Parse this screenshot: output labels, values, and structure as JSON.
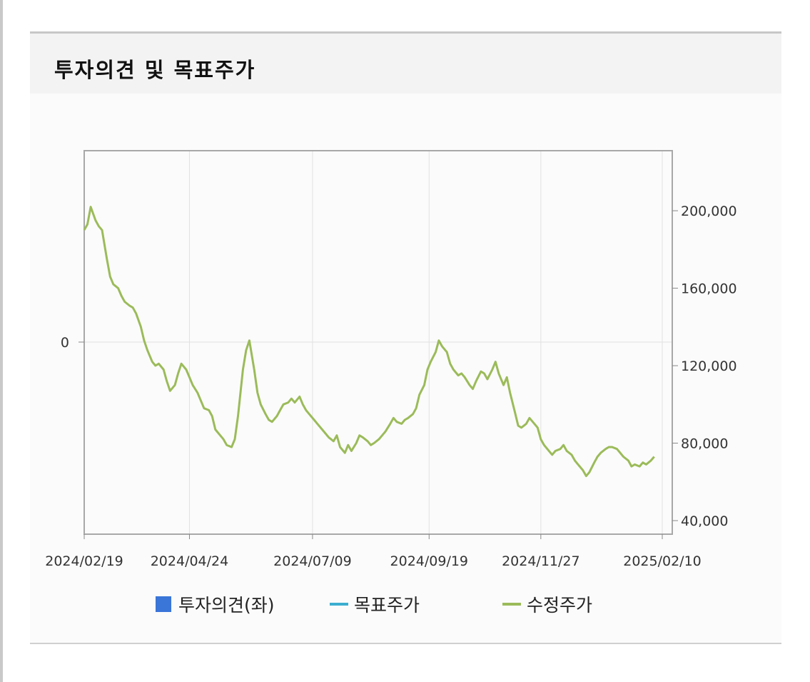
{
  "title": "투자의견 및 목표주가",
  "colors": {
    "price_line": "#9bbb59",
    "opinion": "#3a75d8",
    "target": "#3aaed0",
    "frame": "#a8a8a8",
    "grid": "#e1e1e1"
  },
  "legend": [
    {
      "label": "투자의견(좌)",
      "color": "#3a75d8",
      "shape": "square"
    },
    {
      "label": "목표주가",
      "color": "#3aaed0",
      "shape": "line"
    },
    {
      "label": "수정주가",
      "color": "#9bbb59",
      "shape": "line"
    }
  ],
  "chart_data": {
    "type": "line",
    "title": "",
    "x_ticks": [
      "2024/02/19",
      "2024/04/24",
      "2024/07/09",
      "2024/09/19",
      "2024/11/27",
      "2025/02/10"
    ],
    "y_left": {
      "ticks": [
        "0"
      ]
    },
    "y_right": {
      "ticks": [
        "40,000",
        "80,000",
        "120,000",
        "160,000",
        "200,000"
      ],
      "ylim": [
        33000,
        231000
      ]
    },
    "grid": true,
    "legend_position": "bottom",
    "series": [
      {
        "name": "수정주가",
        "color": "#9bbb59",
        "points": [
          [
            "2024/02/19",
            190000
          ],
          [
            "2024/02/21",
            193000
          ],
          [
            "2024/02/23",
            202000
          ],
          [
            "2024/02/26",
            195000
          ],
          [
            "2024/02/28",
            192000
          ],
          [
            "2024/03/01",
            190000
          ],
          [
            "2024/03/04",
            175000
          ],
          [
            "2024/03/06",
            166000
          ],
          [
            "2024/03/08",
            162000
          ],
          [
            "2024/03/11",
            160000
          ],
          [
            "2024/03/13",
            156000
          ],
          [
            "2024/03/15",
            153000
          ],
          [
            "2024/03/18",
            151000
          ],
          [
            "2024/03/20",
            150000
          ],
          [
            "2024/03/22",
            147000
          ],
          [
            "2024/03/25",
            140000
          ],
          [
            "2024/03/27",
            133000
          ],
          [
            "2024/03/29",
            128000
          ],
          [
            "2024/04/01",
            122000
          ],
          [
            "2024/04/03",
            120000
          ],
          [
            "2024/04/05",
            121000
          ],
          [
            "2024/04/08",
            118000
          ],
          [
            "2024/04/10",
            112000
          ],
          [
            "2024/04/12",
            107000
          ],
          [
            "2024/04/15",
            110000
          ],
          [
            "2024/04/17",
            116000
          ],
          [
            "2024/04/19",
            121000
          ],
          [
            "2024/04/22",
            118000
          ],
          [
            "2024/04/24",
            114000
          ],
          [
            "2024/04/26",
            110000
          ],
          [
            "2024/04/29",
            106000
          ],
          [
            "2024/05/01",
            102000
          ],
          [
            "2024/05/03",
            98000
          ],
          [
            "2024/05/06",
            97000
          ],
          [
            "2024/05/08",
            94000
          ],
          [
            "2024/05/10",
            87000
          ],
          [
            "2024/05/13",
            84000
          ],
          [
            "2024/05/15",
            82000
          ],
          [
            "2024/05/17",
            79000
          ],
          [
            "2024/05/20",
            78000
          ],
          [
            "2024/05/22",
            82000
          ],
          [
            "2024/05/24",
            94000
          ],
          [
            "2024/05/27",
            118000
          ],
          [
            "2024/05/29",
            128000
          ],
          [
            "2024/05/31",
            133000
          ],
          [
            "2024/06/03",
            118000
          ],
          [
            "2024/06/05",
            106000
          ],
          [
            "2024/06/07",
            100000
          ],
          [
            "2024/06/10",
            95000
          ],
          [
            "2024/06/12",
            92000
          ],
          [
            "2024/06/14",
            91000
          ],
          [
            "2024/06/17",
            94000
          ],
          [
            "2024/06/19",
            97000
          ],
          [
            "2024/06/21",
            100000
          ],
          [
            "2024/06/24",
            101000
          ],
          [
            "2024/06/26",
            103000
          ],
          [
            "2024/06/28",
            101000
          ],
          [
            "2024/07/01",
            104000
          ],
          [
            "2024/07/03",
            100000
          ],
          [
            "2024/07/05",
            97000
          ],
          [
            "2024/07/08",
            94000
          ],
          [
            "2024/07/10",
            92000
          ],
          [
            "2024/07/12",
            90000
          ],
          [
            "2024/07/15",
            87000
          ],
          [
            "2024/07/17",
            85000
          ],
          [
            "2024/07/19",
            83000
          ],
          [
            "2024/07/22",
            81000
          ],
          [
            "2024/07/24",
            84000
          ],
          [
            "2024/07/26",
            78000
          ],
          [
            "2024/07/29",
            75000
          ],
          [
            "2024/07/31",
            79000
          ],
          [
            "2024/08/02",
            76000
          ],
          [
            "2024/08/05",
            80000
          ],
          [
            "2024/08/07",
            84000
          ],
          [
            "2024/08/09",
            83000
          ],
          [
            "2024/08/12",
            81000
          ],
          [
            "2024/08/14",
            79000
          ],
          [
            "2024/08/16",
            80000
          ],
          [
            "2024/08/19",
            82000
          ],
          [
            "2024/08/21",
            84000
          ],
          [
            "2024/08/23",
            86000
          ],
          [
            "2024/08/26",
            90000
          ],
          [
            "2024/08/28",
            93000
          ],
          [
            "2024/08/30",
            91000
          ],
          [
            "2024/09/02",
            90000
          ],
          [
            "2024/09/04",
            92000
          ],
          [
            "2024/09/06",
            93000
          ],
          [
            "2024/09/09",
            95000
          ],
          [
            "2024/09/11",
            98000
          ],
          [
            "2024/09/13",
            105000
          ],
          [
            "2024/09/16",
            110000
          ],
          [
            "2024/09/18",
            118000
          ],
          [
            "2024/09/20",
            122000
          ],
          [
            "2024/09/23",
            127000
          ],
          [
            "2024/09/25",
            133000
          ],
          [
            "2024/09/27",
            130000
          ],
          [
            "2024/09/30",
            127000
          ],
          [
            "2024/10/02",
            121000
          ],
          [
            "2024/10/04",
            118000
          ],
          [
            "2024/10/07",
            115000
          ],
          [
            "2024/10/09",
            116000
          ],
          [
            "2024/10/11",
            114000
          ],
          [
            "2024/10/14",
            110000
          ],
          [
            "2024/10/16",
            108000
          ],
          [
            "2024/10/18",
            112000
          ],
          [
            "2024/10/21",
            117000
          ],
          [
            "2024/10/23",
            116000
          ],
          [
            "2024/10/25",
            113000
          ],
          [
            "2024/10/28",
            118000
          ],
          [
            "2024/10/30",
            122000
          ],
          [
            "2024/11/01",
            116000
          ],
          [
            "2024/11/04",
            110000
          ],
          [
            "2024/11/06",
            114000
          ],
          [
            "2024/11/08",
            106000
          ],
          [
            "2024/11/11",
            96000
          ],
          [
            "2024/11/13",
            89000
          ],
          [
            "2024/11/15",
            88000
          ],
          [
            "2024/11/18",
            90000
          ],
          [
            "2024/11/20",
            93000
          ],
          [
            "2024/11/22",
            91000
          ],
          [
            "2024/11/25",
            88000
          ],
          [
            "2024/11/27",
            82000
          ],
          [
            "2024/11/29",
            79000
          ],
          [
            "2024/12/02",
            76000
          ],
          [
            "2024/12/04",
            74000
          ],
          [
            "2024/12/06",
            76000
          ],
          [
            "2024/12/09",
            77000
          ],
          [
            "2024/12/11",
            79000
          ],
          [
            "2024/12/13",
            76000
          ],
          [
            "2024/12/16",
            74000
          ],
          [
            "2024/12/18",
            71000
          ],
          [
            "2024/12/20",
            69000
          ],
          [
            "2024/12/23",
            66000
          ],
          [
            "2024/12/25",
            63000
          ],
          [
            "2024/12/27",
            65000
          ],
          [
            "2024/12/30",
            70000
          ],
          [
            "2025/01/01",
            73000
          ],
          [
            "2025/01/03",
            75000
          ],
          [
            "2025/01/06",
            77000
          ],
          [
            "2025/01/08",
            78000
          ],
          [
            "2025/01/10",
            78000
          ],
          [
            "2025/01/13",
            77000
          ],
          [
            "2025/01/15",
            75000
          ],
          [
            "2025/01/17",
            73000
          ],
          [
            "2025/01/20",
            71000
          ],
          [
            "2025/01/22",
            68000
          ],
          [
            "2025/01/24",
            69000
          ],
          [
            "2025/01/27",
            68000
          ],
          [
            "2025/01/29",
            70000
          ],
          [
            "2025/01/31",
            69000
          ],
          [
            "2025/02/03",
            71000
          ],
          [
            "2025/02/05",
            73000
          ]
        ]
      }
    ]
  }
}
